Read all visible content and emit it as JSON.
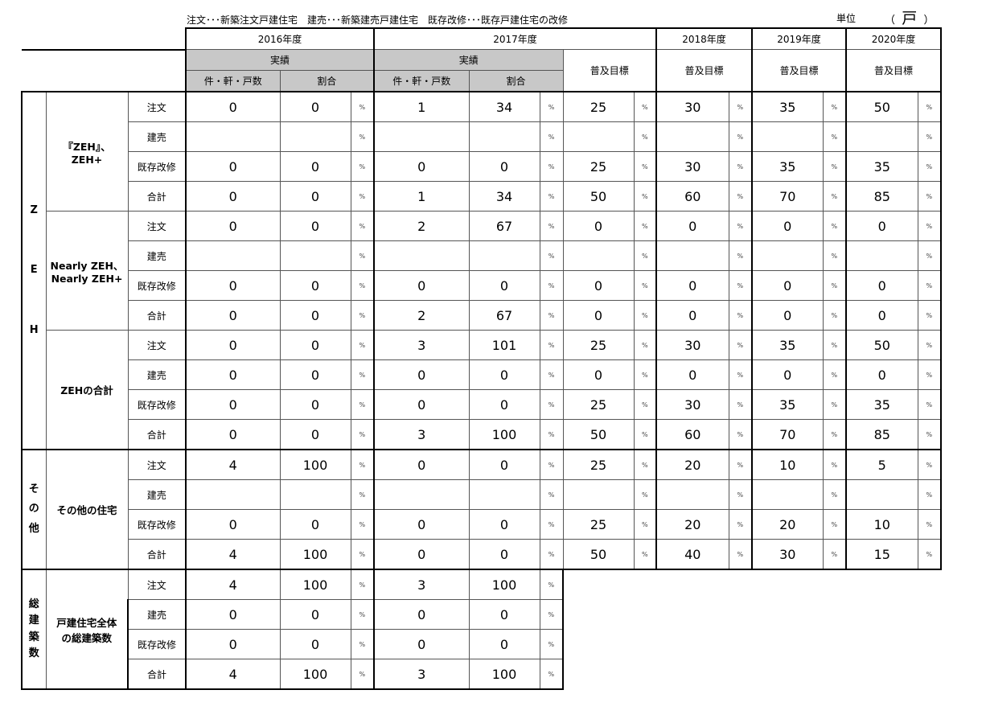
{
  "legend": "注文･･･新築注文戸建住宅　建売･･･新築建売戸建住宅　既存改修･･･既存戸建住宅の改修",
  "unit_label": "単位",
  "unit_value": "戸",
  "header": {
    "years": [
      "2016年度",
      "2017年度",
      "2018年度",
      "2019年度",
      "2020年度"
    ],
    "actual": "実績",
    "target": "普及目標",
    "count": "件・軒・戸数",
    "ratio": "割合"
  },
  "pct_sign": "%",
  "groups": [
    {
      "chars": [
        "Z",
        "E",
        "H"
      ],
      "subgroups": [
        {
          "label": "『ZEH』、ZEH+",
          "rows": [
            {
              "type": "注文",
              "v": [
                "0",
                "0",
                "1",
                "34",
                "25",
                "30",
                "35",
                "50"
              ]
            },
            {
              "type": "建売",
              "v": [
                "",
                "",
                "",
                "",
                "",
                "",
                "",
                ""
              ]
            },
            {
              "type": "既存改修",
              "v": [
                "0",
                "0",
                "0",
                "0",
                "25",
                "30",
                "35",
                "35"
              ]
            },
            {
              "type": "合計",
              "v": [
                "0",
                "0",
                "1",
                "34",
                "50",
                "60",
                "70",
                "85"
              ]
            }
          ]
        },
        {
          "label": "Nearly ZEH、Nearly ZEH+",
          "rows": [
            {
              "type": "注文",
              "v": [
                "0",
                "0",
                "2",
                "67",
                "0",
                "0",
                "0",
                "0"
              ]
            },
            {
              "type": "建売",
              "v": [
                "",
                "",
                "",
                "",
                "",
                "",
                "",
                ""
              ]
            },
            {
              "type": "既存改修",
              "v": [
                "0",
                "0",
                "0",
                "0",
                "0",
                "0",
                "0",
                "0"
              ]
            },
            {
              "type": "合計",
              "v": [
                "0",
                "0",
                "2",
                "67",
                "0",
                "0",
                "0",
                "0"
              ]
            }
          ]
        },
        {
          "label": "ZEHの合計",
          "rows": [
            {
              "type": "注文",
              "v": [
                "0",
                "0",
                "3",
                "101",
                "25",
                "30",
                "35",
                "50"
              ]
            },
            {
              "type": "建売",
              "v": [
                "0",
                "0",
                "0",
                "0",
                "0",
                "0",
                "0",
                "0"
              ]
            },
            {
              "type": "既存改修",
              "v": [
                "0",
                "0",
                "0",
                "0",
                "25",
                "30",
                "35",
                "35"
              ]
            },
            {
              "type": "合計",
              "v": [
                "0",
                "0",
                "3",
                "100",
                "50",
                "60",
                "70",
                "85"
              ]
            }
          ]
        }
      ]
    },
    {
      "chars": [
        "そ",
        "の",
        "他"
      ],
      "subgroups": [
        {
          "label": "その他の住宅",
          "rows": [
            {
              "type": "注文",
              "v": [
                "4",
                "100",
                "0",
                "0",
                "25",
                "20",
                "10",
                "5"
              ]
            },
            {
              "type": "建売",
              "v": [
                "",
                "",
                "",
                "",
                "",
                "",
                "",
                ""
              ]
            },
            {
              "type": "既存改修",
              "v": [
                "0",
                "0",
                "0",
                "0",
                "25",
                "20",
                "20",
                "10"
              ]
            },
            {
              "type": "合計",
              "v": [
                "4",
                "100",
                "0",
                "0",
                "50",
                "40",
                "30",
                "15"
              ]
            }
          ]
        }
      ]
    },
    {
      "chars": [
        "総",
        "建",
        "築",
        "数"
      ],
      "subgroups": [
        {
          "label": "戸建住宅全体の総建築数",
          "rows": [
            {
              "type": "注文",
              "v": [
                "4",
                "100",
                "3",
                "100"
              ]
            },
            {
              "type": "建売",
              "v": [
                "0",
                "0",
                "0",
                "0"
              ]
            },
            {
              "type": "既存改修",
              "v": [
                "0",
                "0",
                "0",
                "0"
              ]
            },
            {
              "type": "合計",
              "v": [
                "4",
                "100",
                "3",
                "100"
              ]
            }
          ]
        }
      ]
    }
  ]
}
